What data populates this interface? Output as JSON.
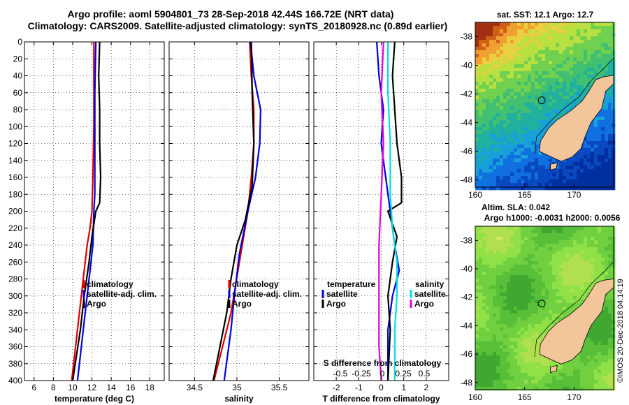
{
  "title_line1": "Argo profile: aoml 5904801_73 28-Sep-2018 42.44S 166.72E (NRT data)",
  "title_line2": "Climatology: CARS2009. Satellite-adjusted climatology: synTS_20180928.nc (0.89d earlier)",
  "watermark": "©IMOS 20-Dec-2018 04:14:19",
  "colors": {
    "climatology": "#e00000",
    "satellite": "#0000e0",
    "argo": "#000000",
    "sal_sat": "#00e0e0",
    "sal_argo": "#e000e0"
  },
  "chart_data": [
    {
      "type": "line",
      "id": "temp",
      "xlabel": "temperature (deg C)",
      "xlim": [
        5,
        19.5
      ],
      "ylim": [
        0,
        400
      ],
      "xticks": [
        6,
        8,
        10,
        12,
        14,
        16,
        18
      ],
      "yticks": [
        0,
        20,
        40,
        60,
        80,
        100,
        120,
        140,
        160,
        180,
        200,
        220,
        240,
        260,
        280,
        300,
        320,
        340,
        360,
        380,
        400
      ],
      "legend": [
        "climatology",
        "satellite-adj. clim.",
        "Argo"
      ],
      "series": [
        {
          "name": "climatology",
          "color": "#e00000",
          "points": [
            [
              12.2,
              0
            ],
            [
              12.2,
              40
            ],
            [
              12.2,
              100
            ],
            [
              12.1,
              160
            ],
            [
              12.0,
              200
            ],
            [
              11.8,
              220
            ],
            [
              11.5,
              240
            ],
            [
              11.1,
              280
            ],
            [
              10.7,
              320
            ],
            [
              10.3,
              360
            ],
            [
              9.9,
              400
            ]
          ]
        },
        {
          "name": "satellite-adj. clim.",
          "color": "#0000e0",
          "points": [
            [
              12.4,
              0
            ],
            [
              12.3,
              60
            ],
            [
              12.3,
              120
            ],
            [
              12.3,
              180
            ],
            [
              12.2,
              200
            ],
            [
              12.1,
              240
            ],
            [
              11.8,
              270
            ],
            [
              11.5,
              300
            ],
            [
              11.2,
              330
            ],
            [
              10.9,
              360
            ],
            [
              10.5,
              400
            ]
          ]
        },
        {
          "name": "Argo",
          "color": "#000000",
          "points": [
            [
              12.8,
              0
            ],
            [
              12.7,
              40
            ],
            [
              12.8,
              80
            ],
            [
              12.8,
              120
            ],
            [
              12.9,
              160
            ],
            [
              12.8,
              190
            ],
            [
              12.4,
              200
            ],
            [
              12.0,
              230
            ],
            [
              11.7,
              260
            ],
            [
              11.2,
              300
            ],
            [
              10.8,
              340
            ],
            [
              10.4,
              370
            ],
            [
              10.0,
              400
            ]
          ]
        }
      ]
    },
    {
      "type": "line",
      "id": "sal",
      "xlabel": "salinity",
      "xlim": [
        34.2,
        35.85
      ],
      "ylim": [
        0,
        400
      ],
      "xticks": [
        34.5,
        35,
        35.5
      ],
      "legend": [
        "climatology",
        "satellite-adj. clim.",
        "Argo"
      ],
      "series": [
        {
          "name": "climatology",
          "color": "#e00000",
          "points": [
            [
              35.15,
              0
            ],
            [
              35.17,
              40
            ],
            [
              35.2,
              80
            ],
            [
              35.2,
              120
            ],
            [
              35.17,
              160
            ],
            [
              35.13,
              200
            ],
            [
              35.03,
              260
            ],
            [
              34.93,
              320
            ],
            [
              34.83,
              360
            ],
            [
              34.73,
              400
            ]
          ]
        },
        {
          "name": "satellite-adj. clim.",
          "color": "#0000e0",
          "points": [
            [
              35.16,
              0
            ],
            [
              35.2,
              40
            ],
            [
              35.28,
              80
            ],
            [
              35.27,
              120
            ],
            [
              35.22,
              160
            ],
            [
              35.13,
              200
            ],
            [
              35.03,
              250
            ],
            [
              34.97,
              300
            ],
            [
              34.93,
              340
            ],
            [
              34.85,
              400
            ]
          ]
        },
        {
          "name": "Argo",
          "color": "#000000",
          "points": [
            [
              35.17,
              0
            ],
            [
              35.18,
              60
            ],
            [
              35.2,
              120
            ],
            [
              35.18,
              170
            ],
            [
              35.1,
              210
            ],
            [
              35.0,
              240
            ],
            [
              34.93,
              280
            ],
            [
              34.88,
              320
            ],
            [
              34.8,
              360
            ],
            [
              34.72,
              400
            ]
          ]
        }
      ]
    },
    {
      "type": "line",
      "id": "diff",
      "xlabel": "T difference from climatology",
      "xlabel_top": "S difference from climatology",
      "xlim": [
        -3,
        3
      ],
      "ylim": [
        0,
        400
      ],
      "xticks": [
        -2,
        -1,
        0,
        1,
        2
      ],
      "xticks_top": [
        -0.5,
        -0.25,
        0,
        0.25,
        0.5
      ],
      "legend_temperature_title": "temperature",
      "legend_salinity_title": "salinity",
      "legend": [
        "satellite",
        "Argo"
      ],
      "series": [
        {
          "name": "temperature satellite",
          "color": "#0000e0",
          "points": [
            [
              -0.2,
              0
            ],
            [
              -0.1,
              40
            ],
            [
              0.1,
              80
            ],
            [
              0.0,
              120
            ],
            [
              0.2,
              160
            ],
            [
              0.4,
              200
            ],
            [
              0.6,
              240
            ],
            [
              0.8,
              270
            ],
            [
              0.5,
              300
            ],
            [
              0.3,
              340
            ],
            [
              0.3,
              400
            ]
          ]
        },
        {
          "name": "temperature Argo",
          "color": "#000000",
          "points": [
            [
              0.6,
              0
            ],
            [
              0.5,
              40
            ],
            [
              0.6,
              80
            ],
            [
              0.7,
              120
            ],
            [
              0.9,
              160
            ],
            [
              0.9,
              190
            ],
            [
              0.3,
              200
            ],
            [
              0.7,
              230
            ],
            [
              0.5,
              260
            ],
            [
              0.3,
              300
            ],
            [
              0.4,
              340
            ],
            [
              0.3,
              400
            ]
          ]
        },
        {
          "name": "salinity satellite",
          "color": "#00e0e0",
          "points": [
            [
              0.3,
              0
            ],
            [
              0.3,
              60
            ],
            [
              0.4,
              120
            ],
            [
              0.4,
              180
            ],
            [
              0.5,
              220
            ],
            [
              0.7,
              260
            ],
            [
              0.7,
              300
            ],
            [
              0.6,
              340
            ],
            [
              0.6,
              400
            ]
          ]
        },
        {
          "name": "salinity Argo",
          "color": "#e000e0",
          "points": [
            [
              0.1,
              0
            ],
            [
              0.0,
              60
            ],
            [
              0.1,
              120
            ],
            [
              0.0,
              180
            ],
            [
              -0.1,
              240
            ],
            [
              -0.1,
              300
            ],
            [
              -0.1,
              360
            ],
            [
              0.0,
              400
            ]
          ]
        }
      ]
    }
  ],
  "maps": {
    "sst": {
      "title": "sat. SST: 12.1 Argo: 12.7",
      "xticks": [
        160,
        165,
        170
      ],
      "yticks": [
        -38,
        -40,
        -42,
        -44,
        -46,
        -48
      ]
    },
    "sla": {
      "title1": "Altim. SLA: 0.042",
      "title2": "Argo h1000: -0.0031 h2000: 0.0056",
      "xticks": [
        160,
        165,
        170
      ],
      "yticks": [
        -38,
        -40,
        -42,
        -44,
        -46,
        -48
      ]
    }
  }
}
